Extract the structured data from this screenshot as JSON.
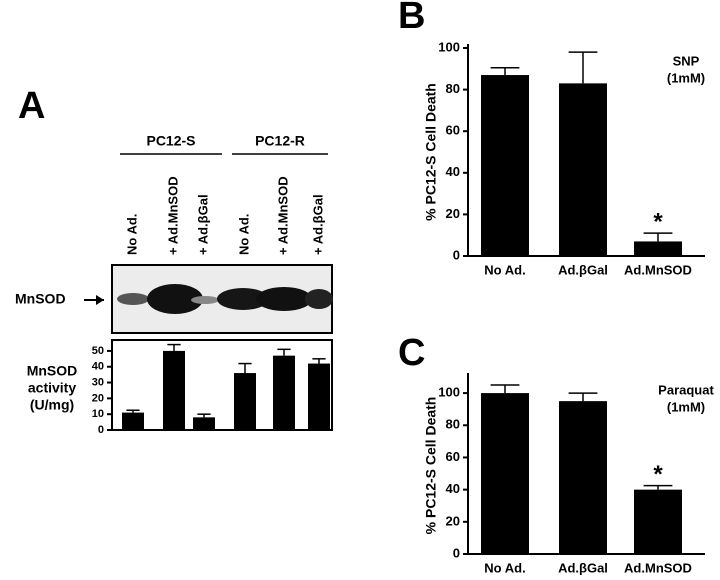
{
  "chart_data": [
    {
      "type": "bar",
      "panel": "A",
      "groups": [
        {
          "name": "PC12-S"
        },
        {
          "name": "PC12-R"
        }
      ],
      "blot_label": "MnSOD",
      "ylabel": [
        "MnSOD",
        "activity",
        "(U/mg)"
      ],
      "categories": [
        "No Ad.",
        "+ Ad.MnSOD",
        "+ Ad.βGal",
        "No Ad.",
        "+ Ad.MnSOD",
        "+ Ad.βGal"
      ],
      "values": [
        11,
        50,
        8,
        36,
        47,
        42
      ],
      "errors": [
        1.5,
        4,
        2,
        6,
        4,
        3
      ],
      "color": "#000000",
      "ylim": [
        0,
        55
      ],
      "yticks": [
        0,
        10,
        20,
        30,
        40,
        50
      ]
    },
    {
      "type": "bar",
      "panel": "B",
      "ylabel": "% PC12-S Cell Death",
      "annotation": [
        "SNP",
        "(1mM)"
      ],
      "marker": "*",
      "categories": [
        "No Ad.",
        "Ad.βGal",
        "Ad.MnSOD"
      ],
      "values": [
        87,
        83,
        7
      ],
      "errors": [
        3.5,
        15,
        4
      ],
      "color": "#000000",
      "ylim": [
        0,
        100
      ],
      "yticks": [
        0,
        20,
        40,
        60,
        80,
        100
      ]
    },
    {
      "type": "bar",
      "panel": "C",
      "ylabel": "% PC12-S Cell Death",
      "annotation": [
        "Paraquat",
        "(1mM)"
      ],
      "marker": "*",
      "categories": [
        "No Ad.",
        "Ad.βGal",
        "Ad.MnSOD"
      ],
      "values": [
        100,
        95,
        40
      ],
      "errors": [
        5,
        5,
        2.5
      ],
      "color": "#000000",
      "ylim": [
        0,
        110
      ],
      "yticks": [
        0,
        20,
        40,
        60,
        80,
        100
      ]
    }
  ]
}
